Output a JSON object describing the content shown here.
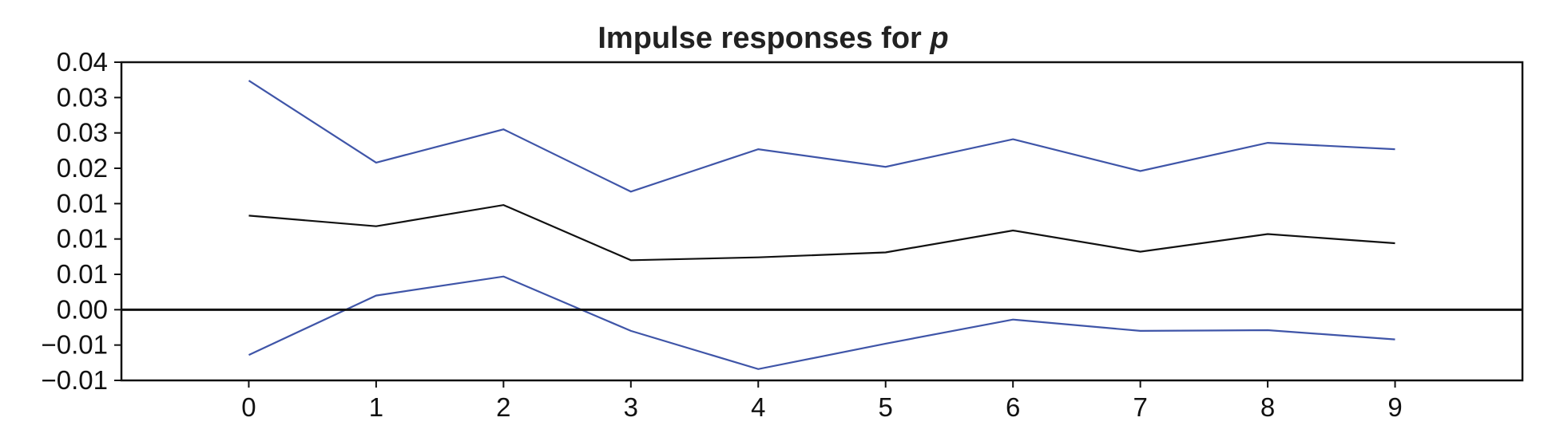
{
  "chart_data": {
    "type": "line",
    "title": "Impulse responses for",
    "title_var": "p",
    "xlabel": "",
    "ylabel": "",
    "x": [
      0,
      1,
      2,
      3,
      4,
      5,
      6,
      7,
      8,
      9
    ],
    "xlim": [
      -1,
      10
    ],
    "ylim": [
      -0.01,
      0.035
    ],
    "yticks": [
      -0.01,
      -0.005,
      0.0,
      0.005,
      0.01,
      0.015,
      0.02,
      0.025,
      0.03,
      0.035
    ],
    "ytick_labels": [
      "−0.01",
      "−0.01",
      "0.00",
      "0.01",
      "0.01",
      "0.01",
      "0.02",
      "0.03",
      "0.03",
      "0.04"
    ],
    "xtick_labels": [
      "0",
      "1",
      "2",
      "3",
      "4",
      "5",
      "6",
      "7",
      "8",
      "9"
    ],
    "zero_line": true,
    "grid": false,
    "series": [
      {
        "role": "upper",
        "color": "#3f55a8",
        "values": [
          0.0324,
          0.0208,
          0.0255,
          0.0167,
          0.0227,
          0.0202,
          0.0241,
          0.0196,
          0.0236,
          0.0227
        ]
      },
      {
        "role": "point",
        "color": "#111111",
        "values": [
          0.0133,
          0.0118,
          0.0148,
          0.007,
          0.0074,
          0.0081,
          0.0112,
          0.0082,
          0.0107,
          0.0094
        ]
      },
      {
        "role": "lower",
        "color": "#3f55a8",
        "values": [
          -0.0064,
          0.002,
          0.0047,
          -0.003,
          -0.0084,
          -0.0048,
          -0.0014,
          -0.003,
          -0.0029,
          -0.0042
        ]
      }
    ]
  }
}
